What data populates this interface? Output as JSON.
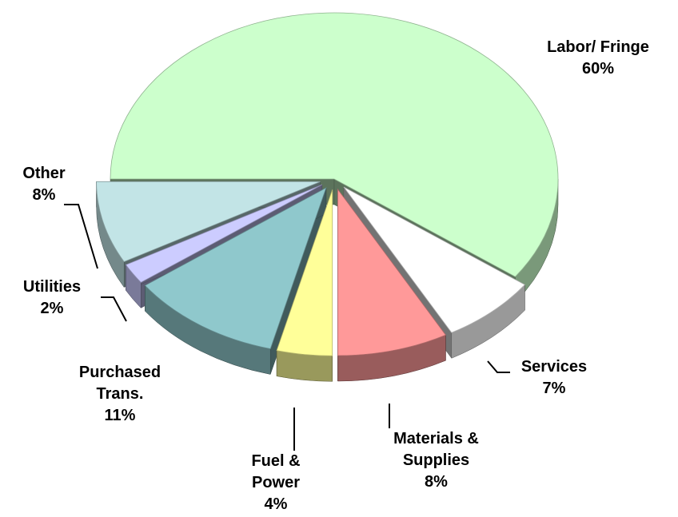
{
  "chart_data": {
    "type": "pie3d",
    "categories": [
      "Labor/ Fringe",
      "Services",
      "Materials & Supplies",
      "Fuel & Power",
      "Purchased Trans.",
      "Utilities",
      "Other"
    ],
    "values": [
      60,
      7,
      8,
      4,
      11,
      2,
      8
    ],
    "value_labels": [
      "60%",
      "7%",
      "8%",
      "4%",
      "11%",
      "2%",
      "8%"
    ],
    "colors": [
      "#ccffcc",
      "#ffffff",
      "#ff9999",
      "#ffff99",
      "#8fc8cc",
      "#ccccff",
      "#c2e4e6"
    ]
  }
}
